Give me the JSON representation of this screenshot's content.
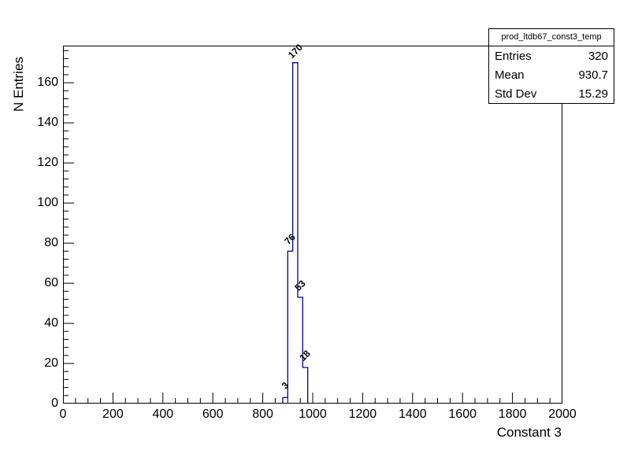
{
  "chart_data": {
    "type": "bar",
    "subtype": "root-step-histogram",
    "title": "prod_ltdb67_const3_temp",
    "xlabel": "Constant 3",
    "ylabel": "N Entries",
    "xlim": [
      0,
      2000
    ],
    "ylim": [
      0,
      178.5
    ],
    "x_major_step": 200,
    "x_minor_step": 50,
    "y_major_step": 20,
    "y_minor_step": 4,
    "grid": false,
    "line_color": "#00009a",
    "bin_width": 20,
    "bins": [
      {
        "x_low": 880,
        "x_high": 900,
        "count": 3,
        "label": "3"
      },
      {
        "x_low": 900,
        "x_high": 920,
        "count": 76,
        "label": "76"
      },
      {
        "x_low": 920,
        "x_high": 940,
        "count": 170,
        "label": "170"
      },
      {
        "x_low": 940,
        "x_high": 960,
        "count": 53,
        "label": "53"
      },
      {
        "x_low": 960,
        "x_high": 980,
        "count": 18,
        "label": "18"
      }
    ]
  },
  "stats_box": {
    "title": "prod_ltdb67_const3_temp",
    "rows": [
      {
        "label": "Entries",
        "value": "320"
      },
      {
        "label": "Mean",
        "value": "930.7"
      },
      {
        "label": "Std Dev",
        "value": "15.29"
      }
    ]
  }
}
